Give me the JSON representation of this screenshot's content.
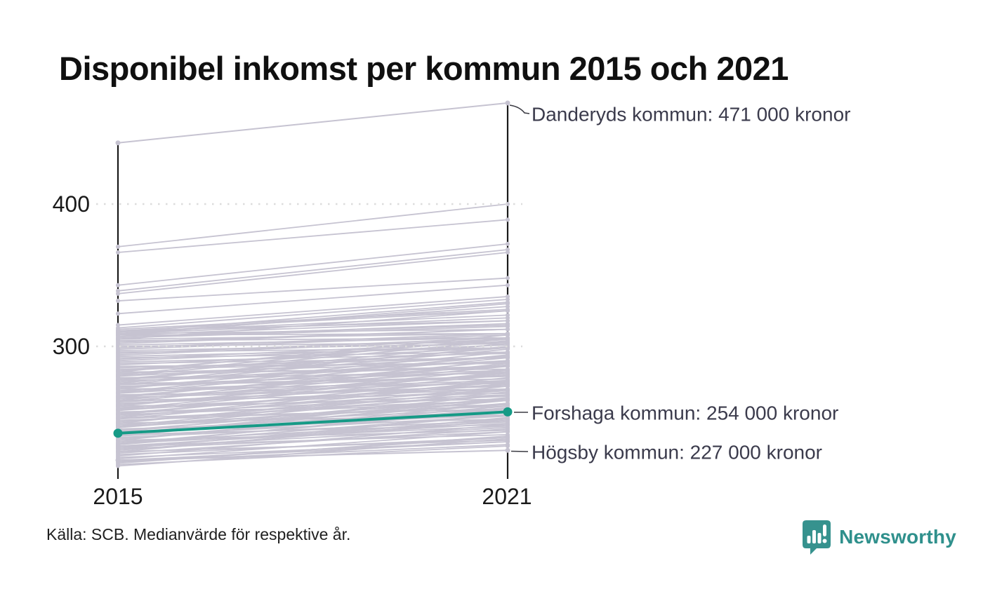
{
  "title": "Disponibel inkomst per kommun 2015 och 2021",
  "source": "Källa: SCB. Medianvärde för respektive år.",
  "branding": {
    "name": "Newsworthy"
  },
  "colors": {
    "background_line": "#c6c3d1",
    "highlight": "#169a86",
    "annotation_text": "#3b3b4c",
    "axis": "#1a1a1a",
    "gridline": "#dcdcdc",
    "leader": "#3a3a42",
    "brand_teal": "#2f908c"
  },
  "chart_data": {
    "type": "line",
    "subtype": "slope-chart",
    "x": [
      2015,
      2021
    ],
    "x_labels": [
      "2015",
      "2021"
    ],
    "y_tick_labels": [
      "400",
      "300"
    ],
    "y_ticks": [
      400,
      300
    ],
    "ylim": [
      213,
      478
    ],
    "unit": "tusen kronor (medianvärde disponibel inkomst)",
    "grid": "dotted horizontal at 300 and 400",
    "highlighted": {
      "name": "Forshaga kommun",
      "values": [
        239,
        254
      ],
      "label": "Forshaga kommun: 254 000 kronor"
    },
    "annotated": [
      {
        "name": "Danderyds kommun",
        "values": [
          443,
          471
        ],
        "label": "Danderyds kommun: 471 000 kronor"
      },
      {
        "name": "Högsby kommun",
        "values": [
          220,
          227
        ],
        "label": "Högsby kommun: 227 000 kronor"
      }
    ],
    "background_lines": [
      [
        370,
        400
      ],
      [
        366,
        389
      ],
      [
        343,
        372
      ],
      [
        339,
        368
      ],
      [
        337,
        366
      ],
      [
        332,
        348
      ],
      [
        323,
        343
      ],
      [
        315,
        335
      ],
      [
        313,
        333
      ],
      [
        311,
        325
      ],
      [
        309,
        320
      ],
      [
        308,
        318
      ],
      [
        306,
        314
      ],
      [
        305,
        325
      ],
      [
        308,
        330
      ],
      [
        310,
        331
      ],
      [
        309,
        328
      ],
      [
        218,
        237
      ],
      [
        219,
        231
      ],
      [
        221,
        240
      ],
      [
        222,
        233
      ],
      [
        223,
        245
      ],
      [
        224,
        236
      ],
      [
        225,
        242
      ],
      [
        226,
        234
      ],
      [
        227,
        248
      ],
      [
        228,
        240
      ],
      [
        229,
        243
      ],
      [
        230,
        238
      ],
      [
        231,
        252
      ],
      [
        232,
        244
      ],
      [
        233,
        247
      ],
      [
        234,
        241
      ],
      [
        235,
        256
      ],
      [
        236,
        248
      ],
      [
        237,
        251
      ],
      [
        238,
        245
      ],
      [
        239,
        260
      ],
      [
        240,
        252
      ],
      [
        241,
        255
      ],
      [
        242,
        249
      ],
      [
        243,
        263
      ],
      [
        244,
        256
      ],
      [
        245,
        259
      ],
      [
        246,
        252
      ],
      [
        247,
        266
      ],
      [
        248,
        258
      ],
      [
        249,
        262
      ],
      [
        250,
        256
      ],
      [
        251,
        270
      ],
      [
        252,
        262
      ],
      [
        253,
        265
      ],
      [
        254,
        259
      ],
      [
        255,
        273
      ],
      [
        256,
        266
      ],
      [
        257,
        269
      ],
      [
        258,
        263
      ],
      [
        259,
        276
      ],
      [
        260,
        270
      ],
      [
        261,
        273
      ],
      [
        262,
        267
      ],
      [
        263,
        280
      ],
      [
        264,
        272
      ],
      [
        265,
        275
      ],
      [
        266,
        270
      ],
      [
        267,
        283
      ],
      [
        268,
        276
      ],
      [
        269,
        279
      ],
      [
        270,
        274
      ],
      [
        271,
        286
      ],
      [
        272,
        279
      ],
      [
        273,
        282
      ],
      [
        274,
        277
      ],
      [
        275,
        290
      ],
      [
        276,
        283
      ],
      [
        277,
        286
      ],
      [
        278,
        281
      ],
      [
        279,
        293
      ],
      [
        280,
        286
      ],
      [
        281,
        289
      ],
      [
        282,
        284
      ],
      [
        283,
        296
      ],
      [
        284,
        289
      ],
      [
        285,
        292
      ],
      [
        286,
        288
      ],
      [
        287,
        299
      ],
      [
        288,
        292
      ],
      [
        289,
        295
      ],
      [
        290,
        301
      ],
      [
        291,
        303
      ],
      [
        292,
        296
      ],
      [
        293,
        299
      ],
      [
        294,
        305
      ],
      [
        295,
        306
      ],
      [
        296,
        299
      ],
      [
        297,
        302
      ],
      [
        298,
        308
      ],
      [
        299,
        309
      ],
      [
        300,
        303
      ],
      [
        301,
        306
      ],
      [
        302,
        312
      ],
      [
        303,
        312
      ],
      [
        304,
        306
      ],
      [
        305,
        309
      ],
      [
        306,
        316
      ],
      [
        307,
        315
      ],
      [
        308,
        309
      ],
      [
        309,
        312
      ],
      [
        310,
        322
      ],
      [
        311,
        318
      ],
      [
        312,
        326
      ],
      [
        228,
        252
      ],
      [
        231,
        257
      ],
      [
        234,
        260
      ],
      [
        237,
        262
      ],
      [
        240,
        266
      ],
      [
        243,
        268
      ],
      [
        246,
        272
      ],
      [
        249,
        274
      ],
      [
        252,
        278
      ],
      [
        255,
        280
      ],
      [
        258,
        284
      ],
      [
        261,
        286
      ],
      [
        264,
        290
      ],
      [
        267,
        292
      ],
      [
        270,
        296
      ],
      [
        273,
        298
      ],
      [
        276,
        302
      ],
      [
        279,
        304
      ],
      [
        282,
        308
      ],
      [
        226,
        250
      ],
      [
        229,
        249
      ],
      [
        232,
        255
      ],
      [
        235,
        258
      ],
      [
        238,
        264
      ],
      [
        241,
        262
      ],
      [
        244,
        270
      ],
      [
        247,
        269
      ],
      [
        250,
        276
      ],
      [
        253,
        275
      ],
      [
        256,
        282
      ],
      [
        259,
        281
      ],
      [
        262,
        288
      ],
      [
        265,
        287
      ],
      [
        268,
        294
      ],
      [
        271,
        293
      ],
      [
        274,
        300
      ],
      [
        277,
        299
      ],
      [
        280,
        306
      ],
      [
        283,
        305
      ],
      [
        230,
        246
      ],
      [
        216,
        235
      ],
      [
        217,
        230
      ],
      [
        219,
        236
      ],
      [
        220,
        233
      ]
    ]
  }
}
